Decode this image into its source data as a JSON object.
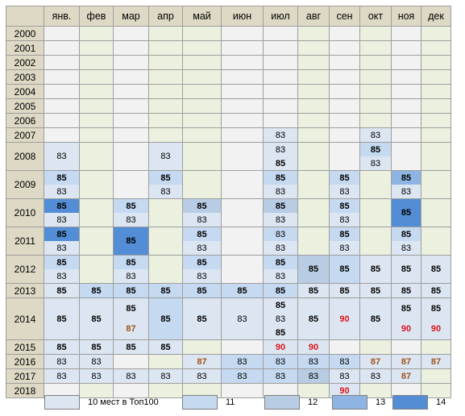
{
  "header": {
    "corner": "",
    "months": [
      "янв.",
      "фев",
      "мар",
      "апр",
      "май",
      "июн",
      "июл",
      "авг",
      "сен",
      "окт",
      "ноя",
      "дек"
    ]
  },
  "colors": {
    "header_bg": "#ddd9c4",
    "col_default": [
      "#f2f2f2",
      "#ebf1de",
      "#f2f2f2",
      "#ebf1de",
      "#ebf1de",
      "#f2f2f2",
      "#f2f2f2",
      "#ebf1de",
      "#f2f2f2",
      "#ebf1de",
      "#f2f2f2",
      "#ebf1de"
    ],
    "level_10": "#dce6f2",
    "level_11": "#c5d9f1",
    "level_12": "#b8cce4",
    "level_13": "#8db4e2",
    "level_14": "#538dd5",
    "value_87": "#a0521a",
    "value_90": "#e0141a"
  },
  "rows": [
    {
      "year": "2000",
      "h": 17,
      "cells": [
        [],
        [],
        [],
        [],
        [],
        [],
        [],
        [],
        [],
        [],
        [],
        []
      ]
    },
    {
      "year": "2001",
      "h": 17,
      "cells": [
        [],
        [],
        [],
        [],
        [],
        [],
        [],
        [],
        [],
        [],
        [],
        []
      ]
    },
    {
      "year": "2002",
      "h": 17,
      "cells": [
        [],
        [],
        [],
        [],
        [],
        [],
        [],
        [],
        [],
        [],
        [],
        []
      ]
    },
    {
      "year": "2003",
      "h": 17,
      "cells": [
        [],
        [],
        [],
        [],
        [],
        [],
        [],
        [],
        [],
        [],
        [],
        []
      ]
    },
    {
      "year": "2004",
      "h": 17,
      "cells": [
        [],
        [],
        [],
        [],
        [],
        [],
        [],
        [],
        [],
        [],
        [],
        []
      ]
    },
    {
      "year": "2005",
      "h": 17,
      "cells": [
        [],
        [],
        [],
        [],
        [],
        [],
        [],
        [],
        [],
        [],
        [],
        []
      ]
    },
    {
      "year": "2006",
      "h": 17,
      "cells": [
        [],
        [],
        [],
        [],
        [],
        [],
        [],
        [],
        [],
        [],
        [],
        []
      ]
    },
    {
      "year": "2007",
      "h": 17,
      "cells": [
        [],
        [],
        [],
        [],
        [],
        [],
        [
          {
            "t": "83",
            "bg": "level_10"
          }
        ],
        [],
        [],
        [
          {
            "t": "83",
            "bg": "level_10"
          }
        ],
        [],
        []
      ]
    },
    {
      "year": "2008",
      "h": 34,
      "cells": [
        [
          {
            "t": "83",
            "bg": "level_10"
          }
        ],
        [],
        [],
        [
          {
            "t": "83",
            "bg": "level_10"
          }
        ],
        [],
        [],
        [
          {
            "t": "83",
            "bg": "level_10"
          },
          {
            "t": "85",
            "bg": "level_10",
            "b": true
          }
        ],
        [],
        [],
        [
          {
            "t": "85",
            "bg": "level_11",
            "b": true
          },
          {
            "t": "83",
            "bg": "level_10"
          }
        ],
        [],
        []
      ]
    },
    {
      "year": "2009",
      "h": 34,
      "cells": [
        [
          {
            "t": "85",
            "bg": "level_11",
            "b": true
          },
          {
            "t": "83",
            "bg": "level_10"
          }
        ],
        [],
        [],
        [
          {
            "t": "85",
            "bg": "level_11",
            "b": true
          },
          {
            "t": "83",
            "bg": "level_10"
          }
        ],
        [],
        [],
        [
          {
            "t": "85",
            "bg": "level_11",
            "b": true
          },
          {
            "t": "83",
            "bg": "level_10"
          }
        ],
        [],
        [
          {
            "t": "85",
            "bg": "level_11",
            "b": true
          },
          {
            "t": "83",
            "bg": "level_10"
          }
        ],
        [],
        [
          {
            "t": "85",
            "bg": "level_13",
            "b": true
          },
          {
            "t": "83",
            "bg": "level_10"
          }
        ],
        []
      ]
    },
    {
      "year": "2010",
      "h": 34,
      "cells": [
        [
          {
            "t": "85",
            "bg": "level_14",
            "b": true
          },
          {
            "t": "83",
            "bg": "level_10"
          }
        ],
        [],
        [
          {
            "t": "85",
            "bg": "level_11",
            "b": true
          },
          {
            "t": "83",
            "bg": "level_10"
          }
        ],
        [],
        [
          {
            "t": "85",
            "bg": "level_12",
            "b": true
          },
          {
            "t": "83",
            "bg": "level_10"
          }
        ],
        [],
        [
          {
            "t": "85",
            "bg": "level_12",
            "b": true
          },
          {
            "t": "83",
            "bg": "level_10"
          }
        ],
        [],
        [
          {
            "t": "85",
            "bg": "level_11",
            "b": true
          },
          {
            "t": "83",
            "bg": "level_10"
          }
        ],
        [],
        [
          {
            "t": "85",
            "bg": "level_14",
            "b": true,
            "full": true
          }
        ],
        []
      ]
    },
    {
      "year": "2011",
      "h": 34,
      "cells": [
        [
          {
            "t": "85",
            "bg": "level_14",
            "b": true
          },
          {
            "t": "83",
            "bg": "level_10"
          }
        ],
        [],
        [
          {
            "t": "85",
            "bg": "level_14",
            "b": true,
            "full": true
          }
        ],
        [],
        [
          {
            "t": "85",
            "bg": "level_11",
            "b": true
          },
          {
            "t": "83",
            "bg": "level_10"
          }
        ],
        [],
        [
          {
            "t": "83",
            "bg": "level_11"
          },
          {
            "t": "83",
            "bg": "level_10"
          }
        ],
        [],
        [
          {
            "t": "85",
            "bg": "level_11",
            "b": true
          },
          {
            "t": "83",
            "bg": "level_10"
          }
        ],
        [],
        [
          {
            "t": "85",
            "bg": "level_11",
            "b": true
          },
          {
            "t": "83",
            "bg": "level_10"
          }
        ],
        []
      ]
    },
    {
      "year": "2012",
      "h": 34,
      "cells": [
        [
          {
            "t": "85",
            "bg": "level_11",
            "b": true
          },
          {
            "t": "83",
            "bg": "level_10"
          }
        ],
        [],
        [
          {
            "t": "85",
            "bg": "level_11",
            "b": true
          },
          {
            "t": "83",
            "bg": "level_10"
          }
        ],
        [],
        [
          {
            "t": "85",
            "bg": "level_11",
            "b": true
          },
          {
            "t": "83",
            "bg": "level_10"
          }
        ],
        [],
        [
          {
            "t": "85",
            "bg": "level_11",
            "b": true
          },
          {
            "t": "83",
            "bg": "level_10"
          }
        ],
        [
          {
            "t": "85",
            "bg": "level_12",
            "b": true,
            "full": true
          }
        ],
        [
          {
            "t": "85",
            "bg": "level_11",
            "b": true,
            "full": true
          }
        ],
        [
          {
            "t": "85",
            "bg": "level_10",
            "b": true,
            "full": true
          }
        ],
        [
          {
            "t": "85",
            "bg": "level_10",
            "b": true,
            "full": true
          }
        ],
        [
          {
            "t": "85",
            "bg": "level_10",
            "b": true,
            "full": true
          }
        ]
      ]
    },
    {
      "year": "2013",
      "h": 17,
      "cells": [
        [
          {
            "t": "85",
            "bg": "level_10",
            "b": true
          }
        ],
        [
          {
            "t": "85",
            "bg": "level_11",
            "b": true
          }
        ],
        [
          {
            "t": "85",
            "bg": "level_11",
            "b": true
          }
        ],
        [
          {
            "t": "85",
            "bg": "level_11",
            "b": true
          }
        ],
        [
          {
            "t": "85",
            "bg": "level_11",
            "b": true
          }
        ],
        [
          {
            "t": "85",
            "bg": "level_11",
            "b": true
          }
        ],
        [
          {
            "t": "85",
            "bg": "level_11",
            "b": true
          }
        ],
        [
          {
            "t": "85",
            "bg": "level_10",
            "b": true
          }
        ],
        [
          {
            "t": "85",
            "bg": "level_10",
            "b": true
          }
        ],
        [
          {
            "t": "85",
            "bg": "level_10",
            "b": true
          }
        ],
        [
          {
            "t": "85",
            "bg": "level_10",
            "b": true
          }
        ],
        [
          {
            "t": "85",
            "bg": "level_10",
            "b": true
          }
        ]
      ]
    },
    {
      "year": "2014",
      "h": 51,
      "cells": [
        [
          {
            "t": "85",
            "bg": "level_10",
            "b": true,
            "full": true
          }
        ],
        [
          {
            "t": "85",
            "bg": "level_10",
            "b": true,
            "full": true
          }
        ],
        [
          {
            "t": "85",
            "bg": "level_10",
            "b": true
          },
          {
            "t": "87",
            "bg": "level_10",
            "c": "c87"
          }
        ],
        [
          {
            "t": "85",
            "bg": "level_11",
            "b": true,
            "full": true
          }
        ],
        [
          {
            "t": "85",
            "bg": "level_10",
            "b": true,
            "full": true
          }
        ],
        [
          {
            "t": "83",
            "bg": "level_10",
            "full": true
          }
        ],
        [
          {
            "t": "85",
            "bg": "level_10",
            "b": true
          },
          {
            "t": "83",
            "bg": "level_10"
          },
          {
            "t": "85",
            "bg": "level_10",
            "b": true
          }
        ],
        [
          {
            "t": "85",
            "bg": "level_10",
            "b": true,
            "full": true
          }
        ],
        [
          {
            "t": "90",
            "bg": "level_10",
            "c": "c90",
            "full": true
          }
        ],
        [
          {
            "t": "85",
            "bg": "level_10",
            "b": true,
            "full": true
          }
        ],
        [
          {
            "t": "85",
            "bg": "level_10",
            "b": true
          },
          {
            "t": "90",
            "bg": "level_10",
            "c": "c90"
          }
        ],
        [
          {
            "t": "85",
            "bg": "level_10",
            "b": true
          },
          {
            "t": "90",
            "bg": "level_10",
            "c": "c90"
          }
        ]
      ]
    },
    {
      "year": "2015",
      "h": 17,
      "cells": [
        [
          {
            "t": "85",
            "bg": "level_10",
            "b": true
          }
        ],
        [
          {
            "t": "85",
            "bg": "level_10",
            "b": true
          }
        ],
        [
          {
            "t": "85",
            "bg": "level_10",
            "b": true
          }
        ],
        [
          {
            "t": "85",
            "bg": "level_10",
            "b": true
          }
        ],
        [],
        [],
        [
          {
            "t": "90",
            "bg": "level_10",
            "c": "c90"
          }
        ],
        [
          {
            "t": "90",
            "bg": "level_10",
            "c": "c90"
          }
        ],
        [],
        [],
        [],
        []
      ]
    },
    {
      "year": "2016",
      "h": 17,
      "cells": [
        [
          {
            "t": "83",
            "bg": "level_10"
          }
        ],
        [
          {
            "t": "83",
            "bg": "level_10"
          }
        ],
        [],
        [],
        [
          {
            "t": "87",
            "bg": "level_10",
            "c": "c87"
          }
        ],
        [
          {
            "t": "83",
            "bg": "level_11"
          }
        ],
        [
          {
            "t": "83",
            "bg": "level_11"
          }
        ],
        [
          {
            "t": "83",
            "bg": "level_11"
          }
        ],
        [
          {
            "t": "83",
            "bg": "level_11"
          }
        ],
        [
          {
            "t": "87",
            "bg": "level_10",
            "c": "c87"
          }
        ],
        [
          {
            "t": "87",
            "bg": "level_10",
            "c": "c87"
          }
        ],
        [
          {
            "t": "87",
            "bg": "level_10",
            "c": "c87"
          }
        ]
      ]
    },
    {
      "year": "2017",
      "h": 17,
      "cells": [
        [
          {
            "t": "83",
            "bg": "level_10"
          }
        ],
        [
          {
            "t": "83",
            "bg": "level_10"
          }
        ],
        [
          {
            "t": "83",
            "bg": "level_10"
          }
        ],
        [
          {
            "t": "83",
            "bg": "level_10"
          }
        ],
        [
          {
            "t": "83",
            "bg": "level_10"
          }
        ],
        [
          {
            "t": "83",
            "bg": "level_11"
          }
        ],
        [
          {
            "t": "83",
            "bg": "level_11"
          }
        ],
        [
          {
            "t": "83",
            "bg": "level_12"
          }
        ],
        [
          {
            "t": "83",
            "bg": "level_10"
          }
        ],
        [
          {
            "t": "83",
            "bg": "level_10"
          }
        ],
        [
          {
            "t": "87",
            "bg": "level_10",
            "c": "c87"
          }
        ],
        []
      ]
    },
    {
      "year": "2018",
      "h": 17,
      "cells": [
        [],
        [],
        [],
        [],
        [],
        [],
        [],
        [],
        [
          {
            "t": "90",
            "bg": "level_10",
            "c": "c90"
          }
        ],
        [],
        [],
        []
      ]
    }
  ],
  "legend": [
    {
      "label": "10 мест в Топ100",
      "color": "level_10",
      "left": 55
    },
    {
      "label": "11",
      "color": "level_11",
      "left": 226
    },
    {
      "label": "12",
      "color": "level_12",
      "left": 328
    },
    {
      "label": "13",
      "color": "level_13",
      "left": 412
    },
    {
      "label": "14",
      "color": "level_14",
      "left": 487
    }
  ]
}
